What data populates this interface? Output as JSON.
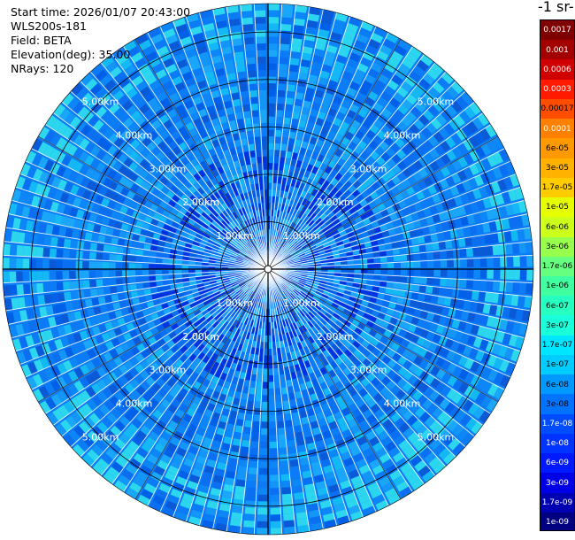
{
  "info": {
    "start_time": "Start time: 2026/01/07 20:43:00",
    "instrument": "WLS200s-181",
    "field": "Field: BETA",
    "elevation": "Elevation(deg): 35.00",
    "nrays": "NRays: 120"
  },
  "colorbar": {
    "title": "-1 sr-",
    "labels": [
      "0.0017",
      "0.001",
      "0.0006",
      "0.0003",
      "0.00017",
      "0.0001",
      "6e-05",
      "3e-05",
      "1.7e-05",
      "1e-05",
      "6e-06",
      "3e-06",
      "1.7e-06",
      "1e-06",
      "6e-07",
      "3e-07",
      "1.7e-07",
      "1e-07",
      "6e-08",
      "3e-08",
      "1.7e-08",
      "1e-08",
      "6e-09",
      "3e-09",
      "1.7e-09",
      "1e-09"
    ],
    "colors": [
      "#7f0000",
      "#a30000",
      "#d10000",
      "#ff1a00",
      "#ff4d00",
      "#ff8000",
      "#ff9900",
      "#ffb300",
      "#ffcc00",
      "#e6ff00",
      "#ccff1a",
      "#99ff4d",
      "#66ff80",
      "#40ffa0",
      "#26ffbf",
      "#1affd9",
      "#00e6ff",
      "#00ccff",
      "#0099ff",
      "#0073ff",
      "#004dff",
      "#0033ff",
      "#001aff",
      "#0000e6",
      "#0000b3",
      "#000080"
    ],
    "text_colors": [
      "#ffffff",
      "#ffffff",
      "#ffffff",
      "#ffffff",
      "#000000",
      "#ffffff",
      "#000000",
      "#000000",
      "#000000",
      "#000000",
      "#000000",
      "#000000",
      "#000000",
      "#000000",
      "#000000",
      "#000000",
      "#000000",
      "#000000",
      "#000000",
      "#000000",
      "#ffffff",
      "#ffffff",
      "#ffffff",
      "#ffffff",
      "#ffffff",
      "#ffffff"
    ]
  },
  "chart_data": {
    "type": "ppi",
    "rays": 120,
    "range_rings_km": [
      1,
      2,
      3,
      4,
      5
    ],
    "ring_labels": [
      "1.00km",
      "2.00km",
      "3.00km",
      "4.00km",
      "5.00km"
    ],
    "max_range_km": 5.6,
    "grid": true,
    "background_color": "#0b7cf5"
  }
}
